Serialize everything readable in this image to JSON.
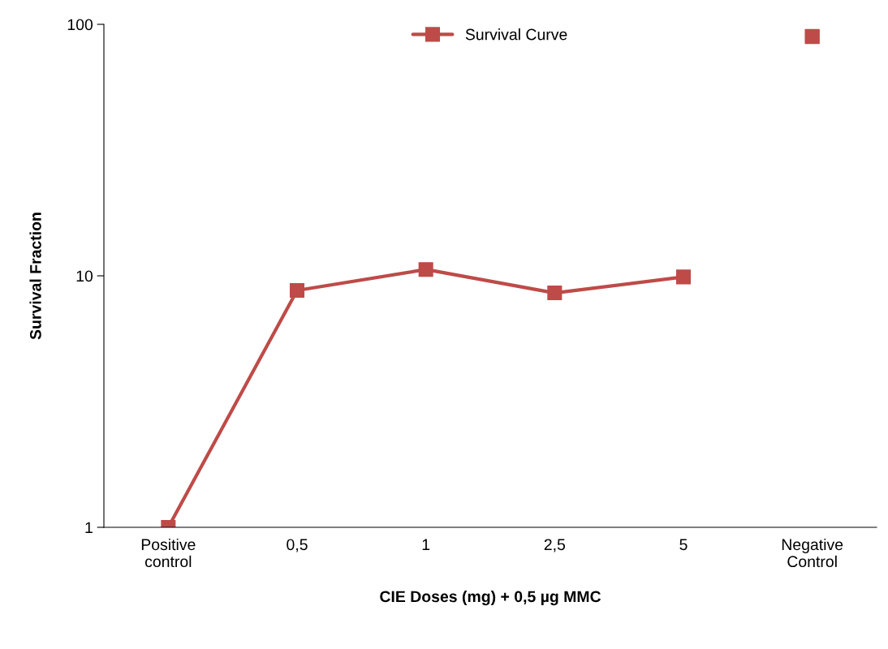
{
  "chart_data": {
    "type": "line",
    "xlabel": "CIE Doses (mg) + 0,5 µg MMC",
    "ylabel": "Survival Fraction",
    "categories": [
      "Positive\ncontrol",
      "0,5",
      "1",
      "2,5",
      "5",
      "Negative\nControl"
    ],
    "series": [
      {
        "name": "Survival Curve",
        "color": "#be4b48",
        "values": [
          1,
          8.75,
          10.6,
          8.55,
          9.9,
          null
        ]
      },
      {
        "type": "scatter",
        "color": "#be4b48",
        "values": [
          null,
          null,
          null,
          null,
          null,
          89.5
        ]
      }
    ],
    "log": "y",
    "ylim": [
      1,
      100
    ],
    "yticks": [
      1,
      10,
      100
    ],
    "marker": "square",
    "line_style": "solid",
    "grid": false,
    "legend": "top"
  }
}
